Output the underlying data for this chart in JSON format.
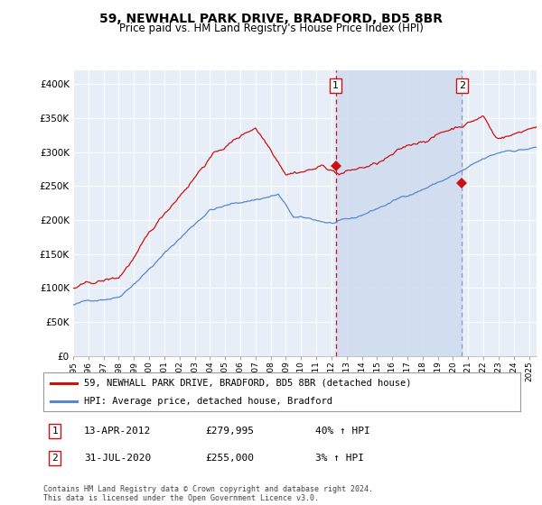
{
  "title": "59, NEWHALL PARK DRIVE, BRADFORD, BD5 8BR",
  "subtitle": "Price paid vs. HM Land Registry's House Price Index (HPI)",
  "title_fontsize": 10,
  "subtitle_fontsize": 8.5,
  "background_color": "#ffffff",
  "plot_bg_color": "#e8eef8",
  "hpi_color": "#5588cc",
  "price_color": "#cc1111",
  "sale1_vline_color": "#cc1111",
  "sale2_vline_color": "#8899bb",
  "shade_color": "#d0ddf0",
  "ylim": [
    0,
    420000
  ],
  "yticks": [
    0,
    50000,
    100000,
    150000,
    200000,
    250000,
    300000,
    350000,
    400000
  ],
  "ytick_labels": [
    "£0",
    "£50K",
    "£100K",
    "£150K",
    "£200K",
    "£250K",
    "£300K",
    "£350K",
    "£400K"
  ],
  "sale1_x": 2012.28,
  "sale1_price": 279995,
  "sale2_x": 2020.58,
  "sale2_price": 255000,
  "legend_line1": "59, NEWHALL PARK DRIVE, BRADFORD, BD5 8BR (detached house)",
  "legend_line2": "HPI: Average price, detached house, Bradford",
  "footer": "Contains HM Land Registry data © Crown copyright and database right 2024.\nThis data is licensed under the Open Government Licence v3.0.",
  "xmin": 1995.0,
  "xmax": 2025.5
}
